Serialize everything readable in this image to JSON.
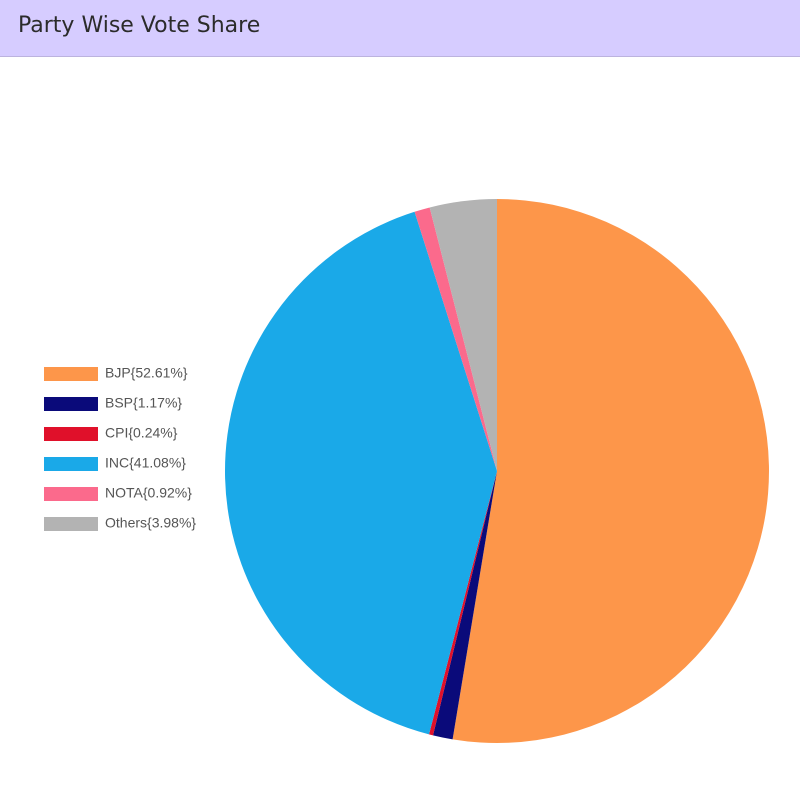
{
  "chart_data": {
    "type": "pie",
    "title": "Party Wise Vote Share",
    "categories": [
      "BJP{52.61%}",
      "BSP{1.17%}",
      "CPI{0.24%}",
      "INC{41.08%}",
      "NOTA{0.92%}",
      "Others{3.98%}"
    ],
    "values": [
      52.61,
      1.17,
      0.24,
      41.08,
      0.92,
      3.98
    ],
    "colors": [
      "#fd964a",
      "#0a0a7a",
      "#e0102a",
      "#1aa9e8",
      "#fb6a8c",
      "#b3b3b3"
    ],
    "legend": "left"
  }
}
